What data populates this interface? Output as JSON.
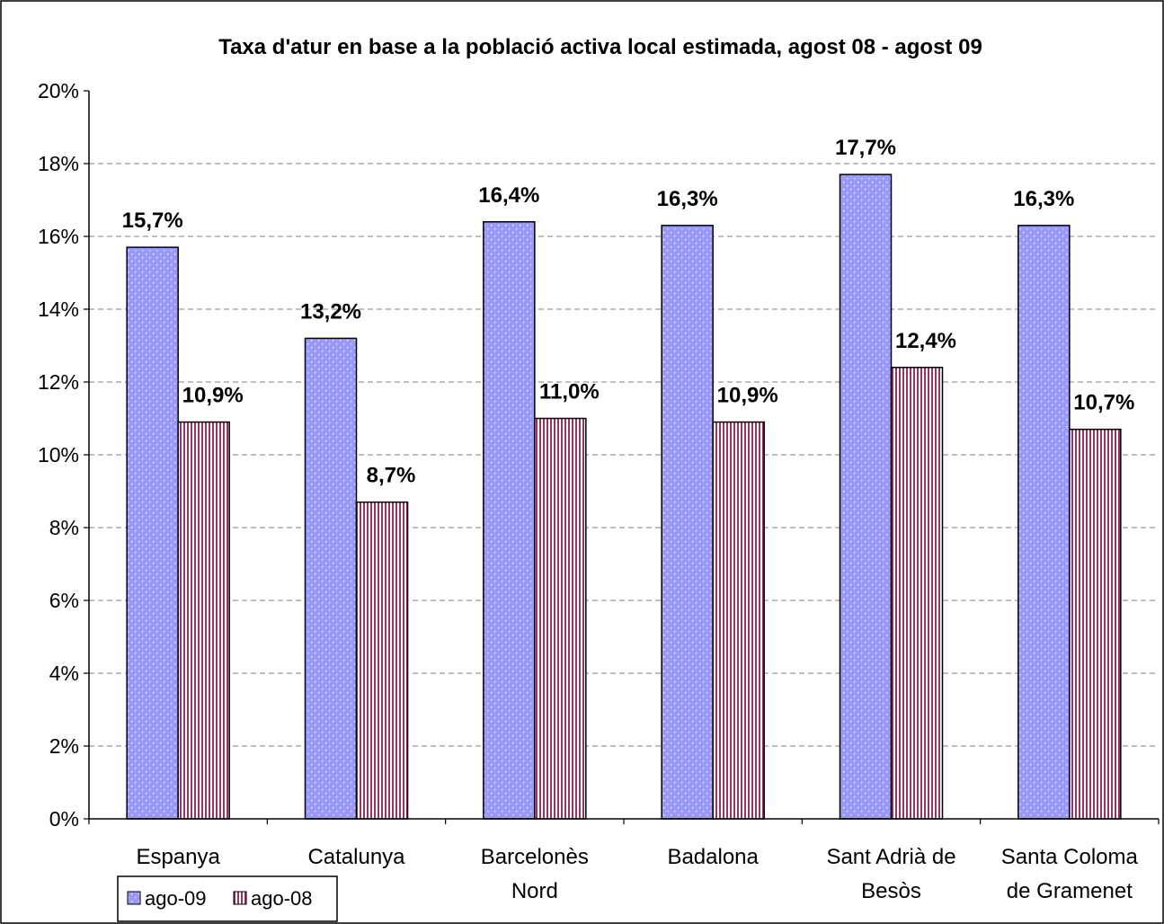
{
  "chart_data": {
    "type": "bar",
    "title": "Taxa d'atur en base a la població activa local estimada, agost 08 - agost 09",
    "xlabel": "",
    "ylabel": "",
    "ylim": [
      0,
      20
    ],
    "y_ticks": [
      "0%",
      "2%",
      "4%",
      "6%",
      "8%",
      "10%",
      "12%",
      "14%",
      "16%",
      "18%",
      "20%"
    ],
    "categories": [
      [
        "Espanya"
      ],
      [
        "Catalunya"
      ],
      [
        "Barcelonès",
        "Nord"
      ],
      [
        "Badalona"
      ],
      [
        "Sant Adrià de",
        "Besòs"
      ],
      [
        "Santa Coloma",
        "de Gramenet"
      ]
    ],
    "series": [
      {
        "name": "ago-09",
        "values": [
          15.7,
          13.2,
          16.4,
          16.3,
          17.7,
          16.3
        ],
        "labels": [
          "15,7%",
          "13,2%",
          "16,4%",
          "16,3%",
          "17,7%",
          "16,3%"
        ],
        "color": "#9999ff"
      },
      {
        "name": "ago-08",
        "values": [
          10.9,
          8.7,
          11.0,
          10.9,
          12.4,
          10.7
        ],
        "labels": [
          "10,9%",
          "8,7%",
          "11,0%",
          "10,9%",
          "12,4%",
          "10,7%"
        ],
        "color": "#993366"
      }
    ],
    "grid": true,
    "legend_position": "bottom-left"
  }
}
